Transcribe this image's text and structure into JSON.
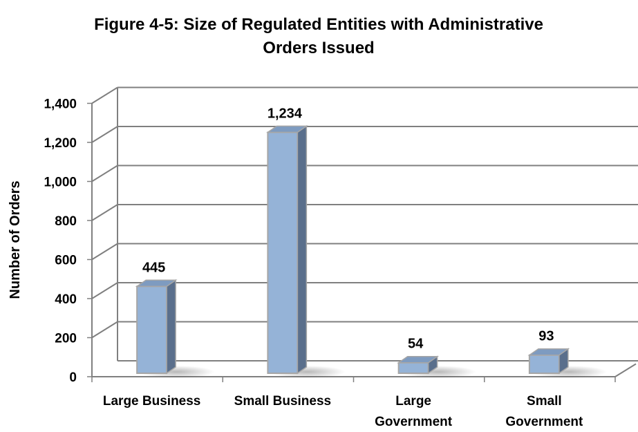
{
  "chart_data": {
    "type": "bar",
    "title_lines": [
      "Figure 4-5: Size of Regulated Entities with Administrative",
      "Orders Issued"
    ],
    "xlabel": "",
    "ylabel": "Number of Orders",
    "categories": [
      "Large Business",
      "Small Business",
      "Large Government",
      "Small Government"
    ],
    "category_label_lines": [
      [
        "Large Business"
      ],
      [
        "Small Business"
      ],
      [
        "Large",
        "Government"
      ],
      [
        "Small",
        "Government"
      ]
    ],
    "values": [
      445,
      1234,
      54,
      93
    ],
    "data_labels": [
      "445",
      "1,234",
      "54",
      "93"
    ],
    "ylim": [
      0,
      1400
    ],
    "yticks": [
      0,
      200,
      400,
      600,
      800,
      1000,
      1200,
      1400
    ],
    "ytick_labels": [
      "0",
      "200",
      "400",
      "600",
      "800",
      "1,000",
      "1,200",
      "1,400"
    ],
    "grid": true,
    "legend": "none",
    "style": "3d-column",
    "colors": {
      "bar_front": "#95B3D7",
      "bar_side": "#5A6F8C",
      "bar_top": "#7E9BC0",
      "bar_edge": "#A6A6A6",
      "gridline": "#7F7F7F"
    }
  }
}
